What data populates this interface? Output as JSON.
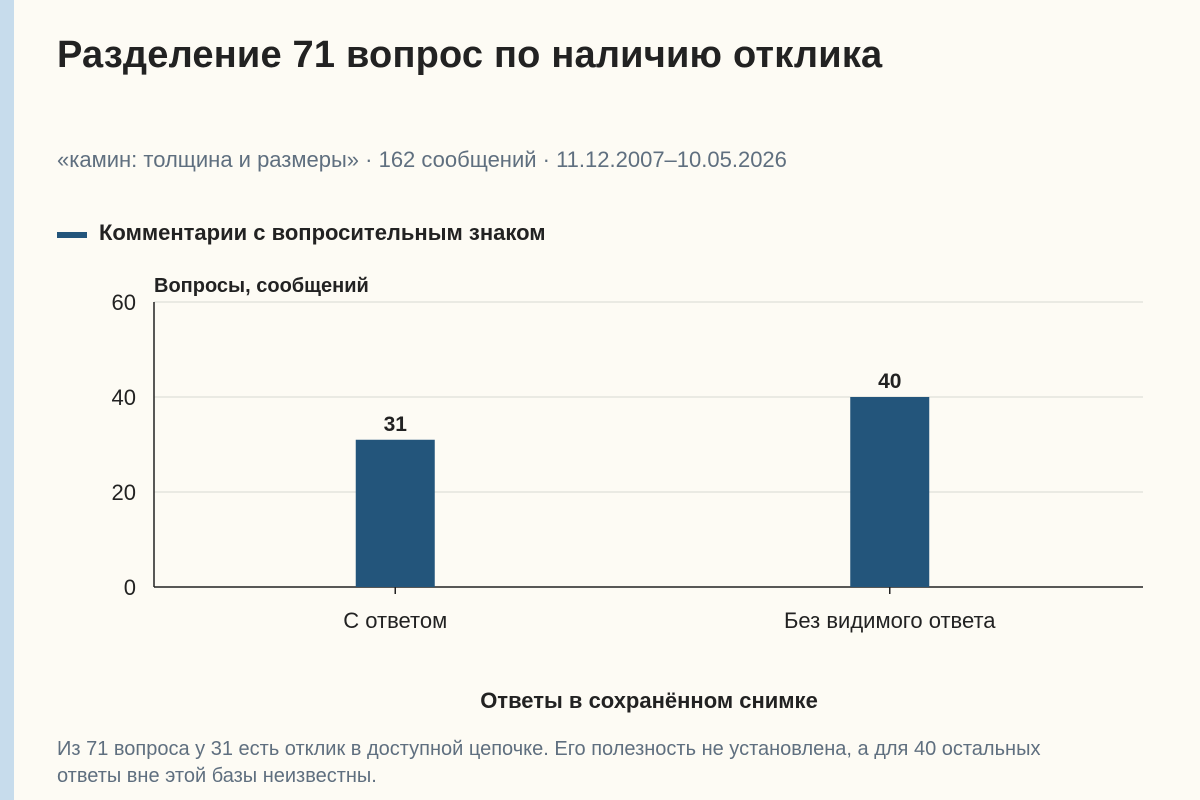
{
  "title": "Разделение 71 вопрос по наличию отклика",
  "subtitle": "«камин: толщина и размеры» · 162 сообщений · 11.12.2007–10.05.2026",
  "note": "Из 71 вопроса у 31 есть отклик в доступной цепочке. Его полезность не установлена, а для 40 остальных ответы вне этой базы неизвестны.",
  "colors": {
    "bar": "#23557b",
    "background": "#fdfbf4",
    "accent_strip": "#c7dcec"
  },
  "chart_data": {
    "type": "bar",
    "title": "Разделение 71 вопрос по наличию отклика",
    "categories": [
      "С ответом",
      "Без видимого ответа"
    ],
    "series": [
      {
        "name": "Комментарии с вопросительным знаком",
        "values": [
          31,
          40
        ]
      }
    ],
    "data_labels": [
      "31",
      "40"
    ],
    "xlabel": "Ответы в сохранённом снимке",
    "ylabel": "Вопросы, сообщений",
    "ylim": [
      0,
      60
    ],
    "yticks": [
      0,
      20,
      40,
      60
    ],
    "grid": true,
    "legend": "top-left"
  }
}
